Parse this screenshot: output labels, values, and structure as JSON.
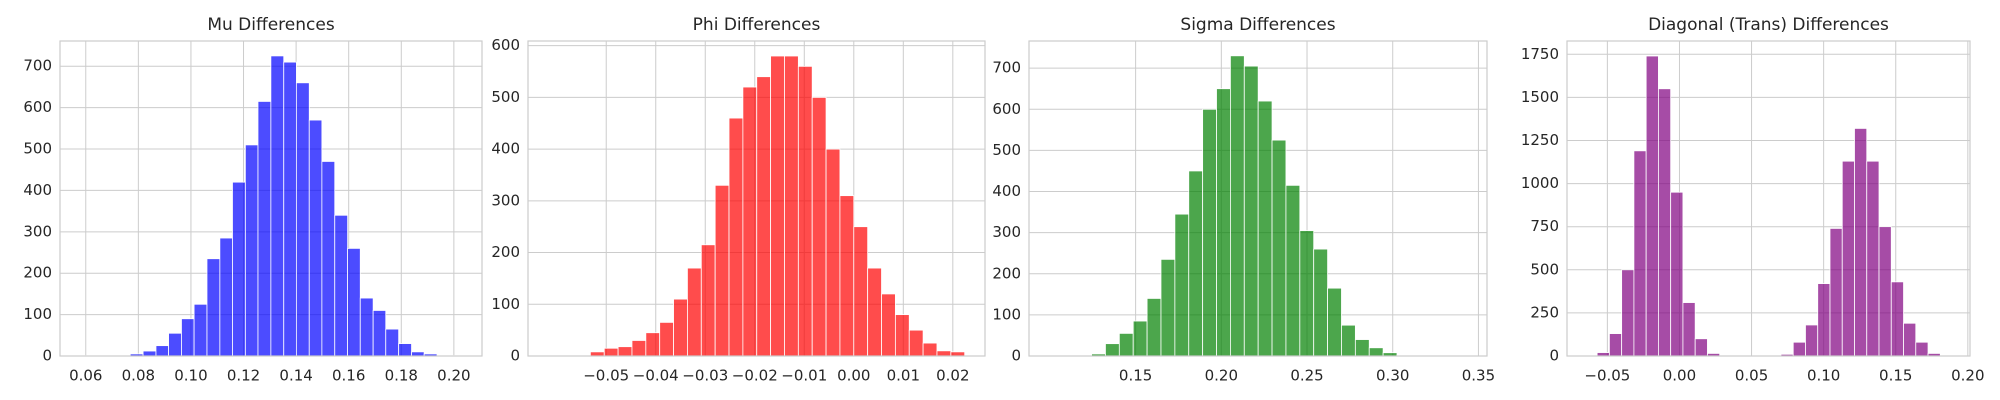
{
  "chart_data": [
    {
      "type": "histogram",
      "title": "Mu Differences",
      "color": "#0000ff",
      "alpha": 0.7,
      "grid": true,
      "bins": [
        0.0575,
        0.0624,
        0.0672,
        0.0721,
        0.0769,
        0.0818,
        0.0867,
        0.0915,
        0.0964,
        0.1012,
        0.1061,
        0.111,
        0.1158,
        0.1207,
        0.1255,
        0.1304,
        0.1353,
        0.1401,
        0.145,
        0.1498,
        0.1547,
        0.1596,
        0.1644,
        0.1693,
        0.1741,
        0.179,
        0.1839,
        0.1887,
        0.1936,
        0.1984,
        0.2033
      ],
      "counts": [
        1,
        0,
        0,
        0,
        5,
        12,
        25,
        55,
        90,
        125,
        235,
        285,
        420,
        510,
        615,
        725,
        710,
        660,
        570,
        470,
        340,
        260,
        140,
        110,
        65,
        30,
        10,
        5,
        0,
        1
      ],
      "xlim": [
        0.0502,
        0.2107
      ],
      "ylim": [
        0,
        761
      ],
      "xticks": [
        0.06,
        0.08,
        {
          "value": 0.1,
          "label": "0.10"
        },
        0.12,
        0.14,
        0.16,
        0.18,
        {
          "value": 0.2,
          "label": "0.20"
        }
      ],
      "yticks": [
        0,
        100,
        200,
        300,
        400,
        500,
        600,
        700
      ]
    },
    {
      "type": "histogram",
      "title": "Phi Differences",
      "color": "#ff0000",
      "alpha": 0.7,
      "grid": true,
      "bins": [
        -0.0616,
        -0.0588,
        -0.056,
        -0.0532,
        -0.0504,
        -0.0476,
        -0.0448,
        -0.042,
        -0.0392,
        -0.0364,
        -0.0336,
        -0.0308,
        -0.028,
        -0.0252,
        -0.0224,
        -0.0196,
        -0.0168,
        -0.014,
        -0.0112,
        -0.0084,
        -0.0056,
        -0.0028,
        0,
        0.0028,
        0.0056,
        0.0084,
        0.0112,
        0.014,
        0.0168,
        0.0196,
        0.0224
      ],
      "counts": [
        1,
        0,
        0,
        8,
        15,
        18,
        30,
        45,
        65,
        110,
        170,
        215,
        330,
        460,
        520,
        540,
        580,
        580,
        560,
        500,
        400,
        310,
        250,
        170,
        120,
        80,
        50,
        25,
        10,
        8
      ],
      "xlim": [
        -0.0658,
        0.0265
      ],
      "ylim": [
        0,
        609
      ],
      "xticks": [
        {
          "value": -0.05,
          "label": "−0.05"
        },
        {
          "value": -0.04,
          "label": "−0.04"
        },
        {
          "value": -0.03,
          "label": "−0.03"
        },
        {
          "value": -0.02,
          "label": "−0.02"
        },
        {
          "value": -0.01,
          "label": "−0.01"
        },
        {
          "value": 0,
          "label": "0.00"
        },
        0.01,
        0.02
      ],
      "yticks": [
        0,
        100,
        200,
        300,
        400,
        500,
        600
      ]
    },
    {
      "type": "histogram",
      "title": "Sigma Differences",
      "color": "#008000",
      "alpha": 0.7,
      "grid": true,
      "bins": [
        0.1,
        0.1081,
        0.1162,
        0.1243,
        0.1324,
        0.1405,
        0.1486,
        0.1567,
        0.1648,
        0.1729,
        0.181,
        0.1891,
        0.1972,
        0.2053,
        0.2134,
        0.2215,
        0.2296,
        0.2377,
        0.2458,
        0.2539,
        0.262,
        0.2701,
        0.2782,
        0.2863,
        0.2944,
        0.3025,
        0.3106,
        0.3187,
        0.3268,
        0.3349,
        0.343
      ],
      "counts": [
        1,
        0,
        0,
        5,
        30,
        55,
        85,
        140,
        235,
        345,
        450,
        600,
        650,
        730,
        705,
        620,
        525,
        415,
        305,
        260,
        165,
        75,
        40,
        20,
        8,
        2,
        0,
        0,
        0,
        1
      ],
      "xlim": [
        0.0878,
        0.355
      ],
      "ylim": [
        0,
        766
      ],
      "xticks": [
        0.15,
        {
          "value": 0.2,
          "label": "0.20"
        },
        0.25,
        {
          "value": 0.3,
          "label": "0.30"
        },
        0.35
      ],
      "yticks": [
        0,
        100,
        200,
        300,
        400,
        500,
        600,
        700
      ]
    },
    {
      "type": "histogram",
      "title": "Diagonal (Trans) Differences",
      "color": "#800080",
      "alpha": 0.7,
      "grid": true,
      "bins": [
        -0.0656,
        -0.0571,
        -0.0486,
        -0.0401,
        -0.0316,
        -0.0231,
        -0.0146,
        -0.0061,
        0.0024,
        0.0109,
        0.0194,
        0.0279,
        0.0364,
        0.0449,
        0.0534,
        0.0619,
        0.0704,
        0.0789,
        0.0874,
        0.0959,
        0.1044,
        0.1129,
        0.1214,
        0.1299,
        0.1384,
        0.1469,
        0.1554,
        0.1639,
        0.1724,
        0.1809,
        0.1894
      ],
      "counts": [
        1,
        20,
        130,
        500,
        1190,
        1740,
        1550,
        950,
        310,
        100,
        15,
        0,
        0,
        0,
        0,
        2,
        10,
        80,
        180,
        420,
        740,
        1130,
        1320,
        1130,
        750,
        430,
        190,
        80,
        15,
        2
      ],
      "xlim": [
        -0.078,
        0.2015
      ],
      "ylim": [
        0,
        1827
      ],
      "xticks": [
        {
          "value": -0.05,
          "label": "−0.05"
        },
        {
          "value": 0,
          "label": "0.00"
        },
        0.05,
        {
          "value": 0.1,
          "label": "0.10"
        },
        0.15,
        {
          "value": 0.2,
          "label": "0.20"
        }
      ],
      "yticks": [
        0,
        250,
        500,
        750,
        1000,
        1250,
        1500,
        1750
      ]
    }
  ]
}
